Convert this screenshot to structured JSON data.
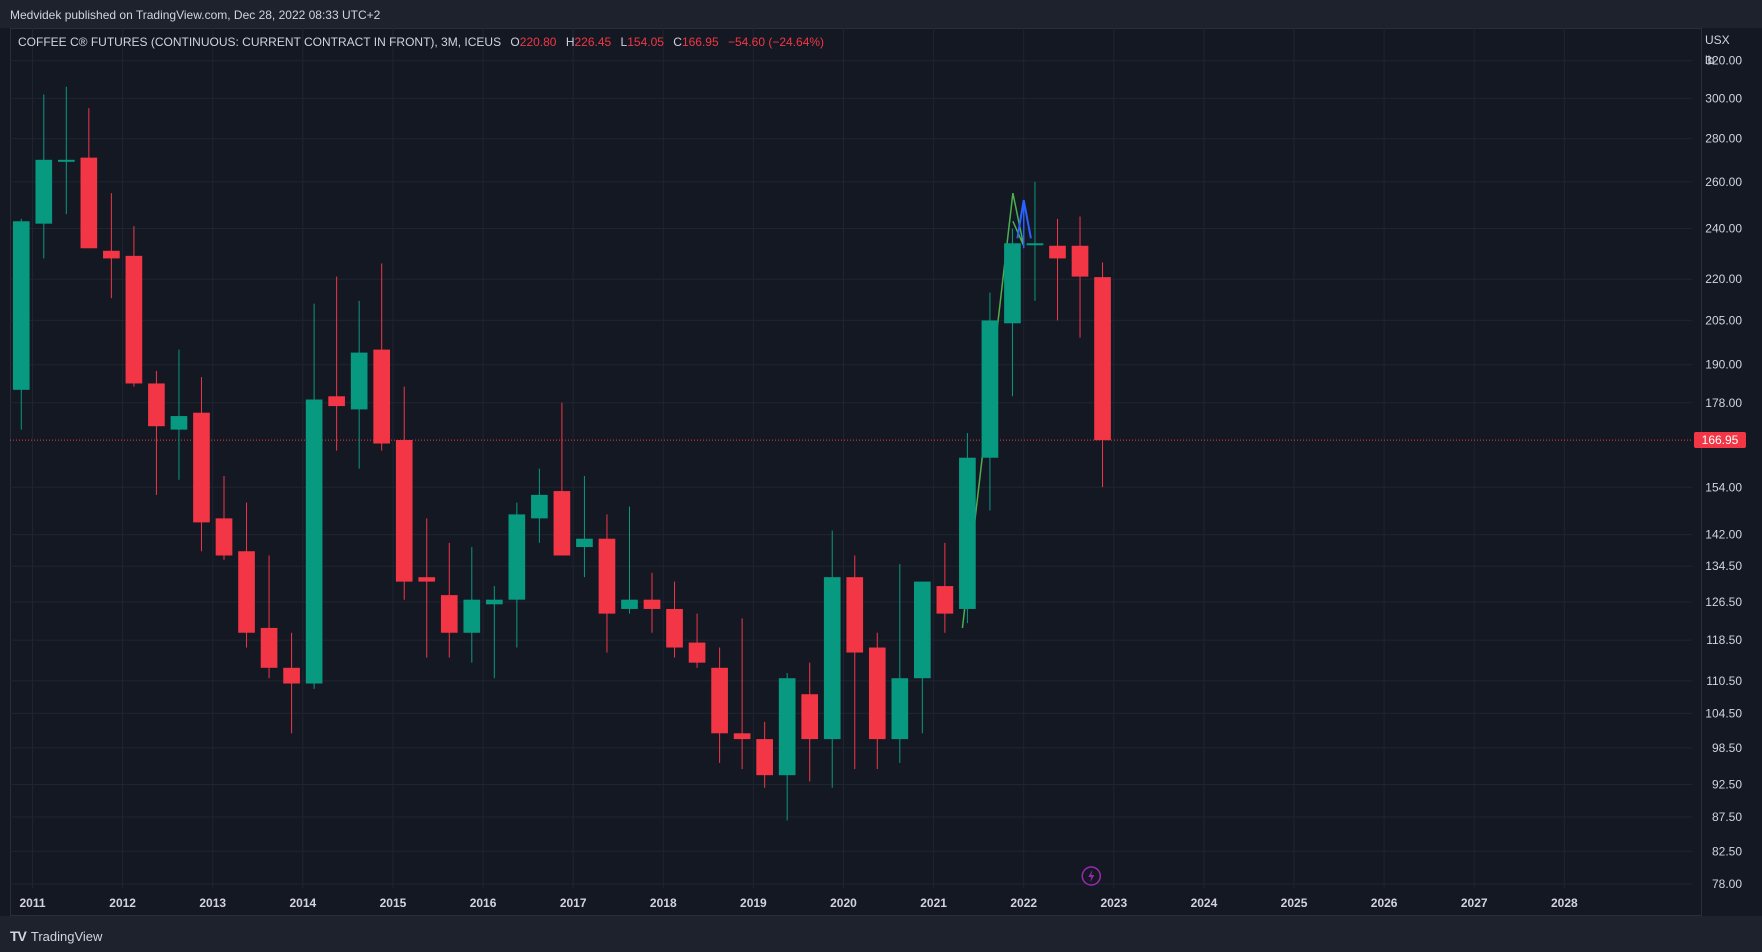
{
  "header": {
    "published": "Medvidek published on TradingView.com, Dec 28, 2022 08:33 UTC+2"
  },
  "legend": {
    "symbol": "COFFEE C® FUTURES (CONTINUOUS: CURRENT CONTRACT IN FRONT), 3M, ICEUS",
    "o_label": "O",
    "o_value": "220.80",
    "h_label": "H",
    "h_value": "226.45",
    "l_label": "L",
    "l_value": "154.05",
    "c_label": "C",
    "c_value": "166.95",
    "change": "−54.60 (−24.64%)"
  },
  "price_axis": {
    "unit_line1": "USX",
    "unit_line2": "lb"
  },
  "last_price_label": "166.95",
  "footer": {
    "logo": "TV",
    "brand": "TradingView"
  },
  "colors": {
    "up": "#089981",
    "down": "#f23645",
    "background": "#141823",
    "grid": "#1f2431",
    "axis_text": "#d1d4dc",
    "trendline": "#4caf50",
    "arrow": "#2962ff",
    "event_icon": "#9c27b0"
  },
  "chart_data": {
    "type": "candlestick",
    "interval": "3M",
    "scale": "log",
    "ylim": [
      78,
      335
    ],
    "y_ticks": [
      "78.00",
      "82.50",
      "87.50",
      "92.50",
      "98.50",
      "104.50",
      "110.50",
      "118.50",
      "126.50",
      "134.50",
      "142.00",
      "154.00",
      "166.95",
      "178.00",
      "190.00",
      "205.00",
      "220.00",
      "240.00",
      "260.00",
      "280.00",
      "300.00",
      "320.00"
    ],
    "x_ticks": [
      "2011",
      "2012",
      "2013",
      "2014",
      "2015",
      "2016",
      "2017",
      "2018",
      "2019",
      "2020",
      "2021",
      "2022",
      "2023",
      "2024",
      "2025",
      "2026",
      "2027",
      "2028"
    ],
    "xlim": [
      "2010-10",
      "2029-06"
    ],
    "candles": [
      {
        "t": "2010-10",
        "o": 182,
        "h": 244,
        "l": 170,
        "c": 243
      },
      {
        "t": "2011-01",
        "o": 242,
        "h": 302,
        "l": 228,
        "c": 270
      },
      {
        "t": "2011-04",
        "o": 270,
        "h": 306,
        "l": 246,
        "c": 270
      },
      {
        "t": "2011-07",
        "o": 271,
        "h": 295,
        "l": 232,
        "c": 232
      },
      {
        "t": "2011-10",
        "o": 231,
        "h": 255,
        "l": 213,
        "c": 228
      },
      {
        "t": "2012-01",
        "o": 229,
        "h": 241,
        "l": 183,
        "c": 184
      },
      {
        "t": "2012-04",
        "o": 184,
        "h": 188,
        "l": 152,
        "c": 171
      },
      {
        "t": "2012-07",
        "o": 170,
        "h": 195,
        "l": 156,
        "c": 174
      },
      {
        "t": "2012-10",
        "o": 175,
        "h": 186,
        "l": 138,
        "c": 145
      },
      {
        "t": "2013-01",
        "o": 146,
        "h": 157,
        "l": 136,
        "c": 137
      },
      {
        "t": "2013-04",
        "o": 138,
        "h": 150,
        "l": 117,
        "c": 120
      },
      {
        "t": "2013-07",
        "o": 121,
        "h": 137,
        "l": 111,
        "c": 113
      },
      {
        "t": "2013-10",
        "o": 113,
        "h": 120,
        "l": 101,
        "c": 110
      },
      {
        "t": "2014-01",
        "o": 110,
        "h": 211,
        "l": 109,
        "c": 179
      },
      {
        "t": "2014-04",
        "o": 180,
        "h": 221,
        "l": 164,
        "c": 177
      },
      {
        "t": "2014-07",
        "o": 176,
        "h": 212,
        "l": 159,
        "c": 194
      },
      {
        "t": "2014-10",
        "o": 195,
        "h": 226,
        "l": 164,
        "c": 166
      },
      {
        "t": "2015-01",
        "o": 167,
        "h": 183,
        "l": 127,
        "c": 131
      },
      {
        "t": "2015-04",
        "o": 132,
        "h": 146,
        "l": 115,
        "c": 131
      },
      {
        "t": "2015-07",
        "o": 128,
        "h": 140,
        "l": 115,
        "c": 120
      },
      {
        "t": "2015-10",
        "o": 120,
        "h": 139,
        "l": 114,
        "c": 127
      },
      {
        "t": "2016-01",
        "o": 126,
        "h": 130,
        "l": 111,
        "c": 127
      },
      {
        "t": "2016-04",
        "o": 127,
        "h": 150,
        "l": 117,
        "c": 147
      },
      {
        "t": "2016-07",
        "o": 146,
        "h": 159,
        "l": 140,
        "c": 152
      },
      {
        "t": "2016-10",
        "o": 153,
        "h": 178,
        "l": 137,
        "c": 137
      },
      {
        "t": "2017-01",
        "o": 139,
        "h": 157,
        "l": 132,
        "c": 141
      },
      {
        "t": "2017-04",
        "o": 141,
        "h": 147,
        "l": 116,
        "c": 124
      },
      {
        "t": "2017-07",
        "o": 125,
        "h": 149,
        "l": 124,
        "c": 127
      },
      {
        "t": "2017-10",
        "o": 127,
        "h": 133,
        "l": 120,
        "c": 125
      },
      {
        "t": "2018-01",
        "o": 125,
        "h": 131,
        "l": 115,
        "c": 117
      },
      {
        "t": "2018-04",
        "o": 118,
        "h": 124,
        "l": 113,
        "c": 114
      },
      {
        "t": "2018-07",
        "o": 113,
        "h": 117,
        "l": 96,
        "c": 101
      },
      {
        "t": "2018-10",
        "o": 101,
        "h": 123,
        "l": 95,
        "c": 100
      },
      {
        "t": "2019-01",
        "o": 100,
        "h": 103,
        "l": 92,
        "c": 94
      },
      {
        "t": "2019-04",
        "o": 94,
        "h": 112,
        "l": 87,
        "c": 111
      },
      {
        "t": "2019-07",
        "o": 108,
        "h": 114,
        "l": 93,
        "c": 100
      },
      {
        "t": "2019-10",
        "o": 100,
        "h": 143,
        "l": 92,
        "c": 132
      },
      {
        "t": "2020-01",
        "o": 132,
        "h": 137,
        "l": 95,
        "c": 116
      },
      {
        "t": "2020-04",
        "o": 117,
        "h": 120,
        "l": 95,
        "c": 100
      },
      {
        "t": "2020-07",
        "o": 100,
        "h": 135,
        "l": 96,
        "c": 111
      },
      {
        "t": "2020-10",
        "o": 111,
        "h": 131,
        "l": 101,
        "c": 131
      },
      {
        "t": "2021-01",
        "o": 130,
        "h": 140,
        "l": 120,
        "c": 124
      },
      {
        "t": "2021-04",
        "o": 125,
        "h": 169,
        "l": 122,
        "c": 162
      },
      {
        "t": "2021-07",
        "o": 162,
        "h": 215,
        "l": 148,
        "c": 205
      },
      {
        "t": "2021-10",
        "o": 204,
        "h": 240,
        "l": 180,
        "c": 234
      },
      {
        "t": "2022-01",
        "o": 234,
        "h": 260,
        "l": 212,
        "c": 234
      },
      {
        "t": "2022-04",
        "o": 233,
        "h": 244,
        "l": 205,
        "c": 228
      },
      {
        "t": "2022-07",
        "o": 233,
        "h": 245,
        "l": 199,
        "c": 221
      },
      {
        "t": "2022-10",
        "o": 220.8,
        "h": 226.45,
        "l": 154.05,
        "c": 166.95
      }
    ]
  }
}
